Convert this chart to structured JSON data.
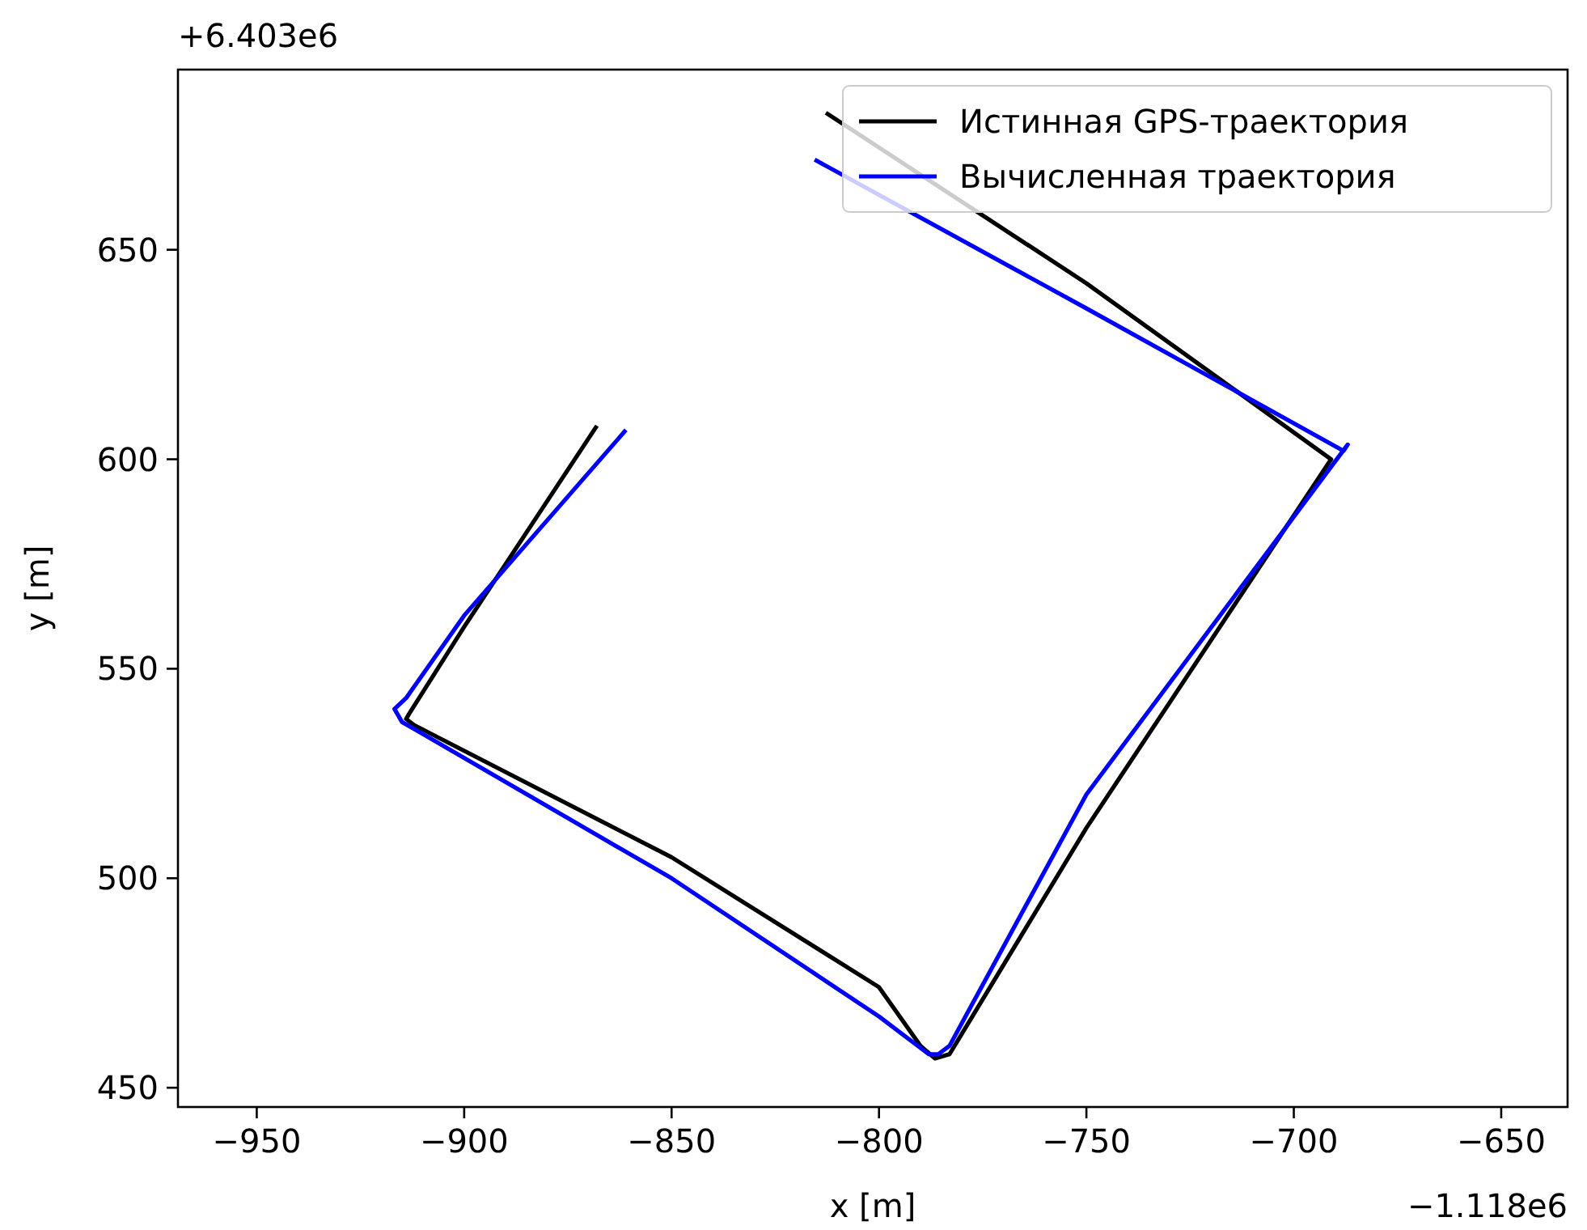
{
  "chart_data": {
    "type": "line",
    "xlabel": "x [m]",
    "ylabel": "y [m]",
    "xlim": [
      -969,
      -634
    ],
    "ylim": [
      445.4,
      693
    ],
    "xticks": [
      -950,
      -900,
      -850,
      -800,
      -750,
      -700,
      -650
    ],
    "yticks": [
      450,
      500,
      550,
      600,
      650
    ],
    "annotations": [
      "+6.403e6",
      "−1.118e6"
    ],
    "legend": "top right",
    "grid": false,
    "marker": "none",
    "line_style": "solid",
    "series": [
      {
        "name": "Истинная GPS-траектория",
        "color": "#000000",
        "x": [
          -868,
          -900,
          -913.3,
          -914,
          -912,
          -850,
          -800,
          -790,
          -786.5,
          -783,
          -750,
          -691,
          -750,
          -812.8
        ],
        "values": [
          608,
          560,
          539.2,
          538,
          536.5,
          505,
          474,
          460,
          457,
          458,
          512,
          600,
          642,
          682.7
        ]
      },
      {
        "name": "Вычисленная траектория",
        "color": "#0000ff",
        "x": [
          -861,
          -900,
          -914,
          -916.8,
          -915,
          -850,
          -800,
          -788,
          -785.7,
          -783,
          -750,
          -687,
          -688,
          -750,
          -815.5
        ],
        "values": [
          607,
          562.7,
          543,
          540.4,
          537.3,
          500,
          467,
          458,
          458,
          460,
          520,
          603.5,
          602,
          636,
          671.5
        ]
      }
    ]
  }
}
